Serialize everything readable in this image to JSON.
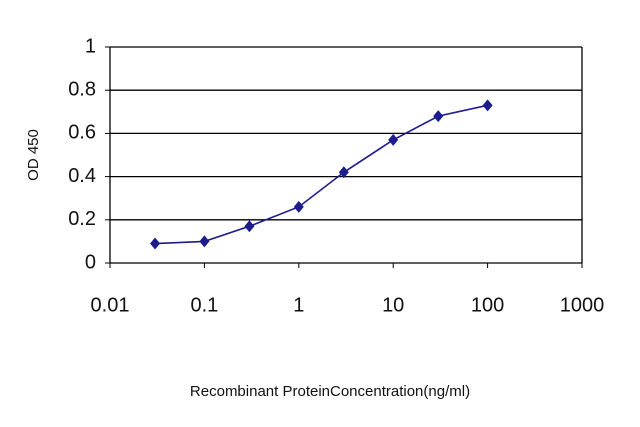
{
  "chart_data": {
    "type": "line",
    "x_label": "Recombinant ProteinConcentration(ng/ml)",
    "y_label": "OD 450",
    "x": [
      0.03,
      0.1,
      0.3,
      1,
      3,
      10,
      30,
      100
    ],
    "series": [
      {
        "color": "#1c1c8e",
        "values": [
          0.09,
          0.1,
          0.17,
          0.26,
          0.42,
          0.57,
          0.68,
          0.73
        ]
      }
    ],
    "xscale": "log",
    "xlim": [
      0.01,
      1000
    ],
    "xticks": [
      0.01,
      0.1,
      1,
      10,
      100,
      1000
    ],
    "ylim": [
      0,
      1
    ],
    "yticks": [
      0,
      0.2,
      0.4,
      0.6,
      0.8,
      1
    ],
    "grid": true
  }
}
